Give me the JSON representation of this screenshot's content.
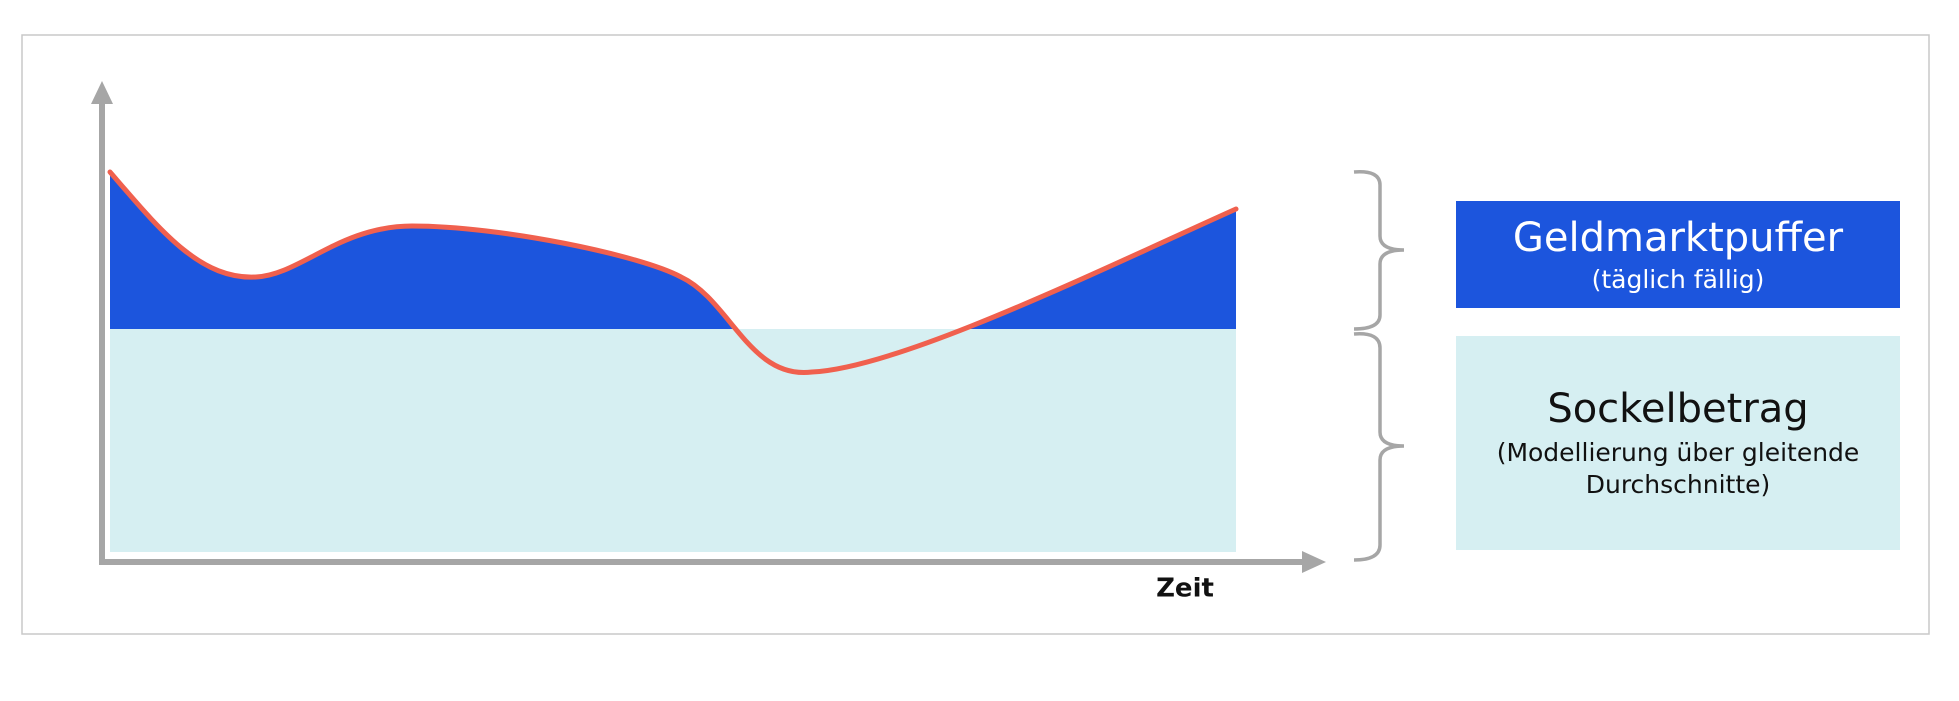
{
  "axis": {
    "x_label": "Zeit"
  },
  "segments": [
    {
      "title": "Geldmarktpuffer",
      "subtitle": "(täglich fällig)"
    },
    {
      "title": "Sockelbetrag",
      "subtitle_lines": [
        "(Modellierung über gleitende",
        "Durchschnitte)"
      ]
    }
  ]
}
